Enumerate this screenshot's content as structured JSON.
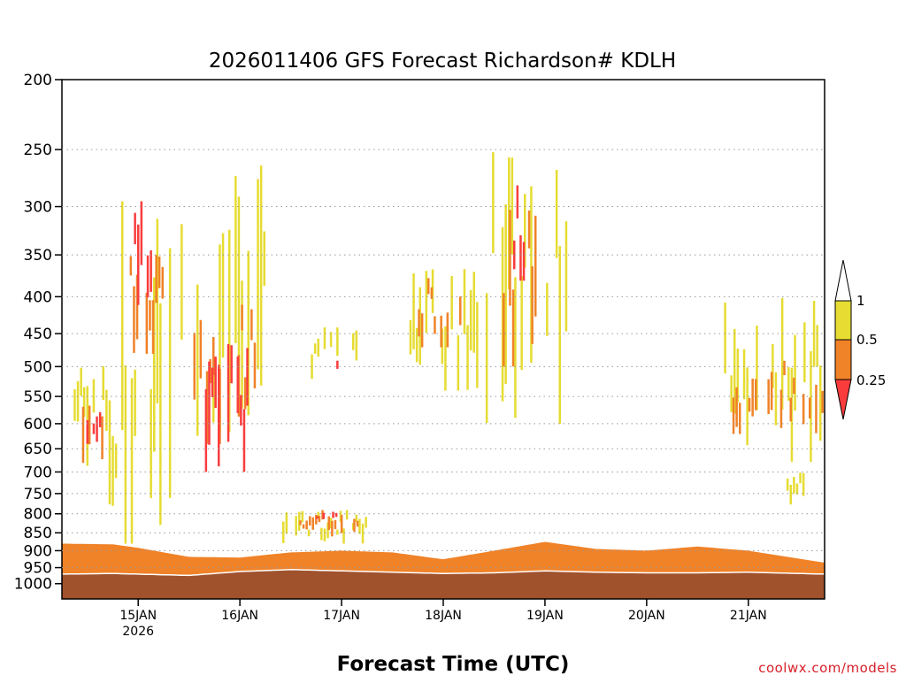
{
  "chart_data": {
    "type": "heatmap",
    "title": "2026011406 GFS Forecast Richardson# KDLH",
    "xlabel": "Forecast Time (UTC)",
    "ylabel": "",
    "y_axis": {
      "scale": "log-pressure",
      "reversed": false,
      "range": [
        200,
        1050
      ],
      "ticks": [
        200,
        250,
        300,
        350,
        400,
        450,
        500,
        550,
        600,
        650,
        700,
        750,
        800,
        850,
        900,
        950,
        1000
      ]
    },
    "x_axis": {
      "range_hours": [
        0,
        180
      ],
      "ticks": [
        {
          "hour": 18,
          "label": "15JAN",
          "sublabel": "2026"
        },
        {
          "hour": 42,
          "label": "16JAN",
          "sublabel": ""
        },
        {
          "hour": 66,
          "label": "17JAN",
          "sublabel": ""
        },
        {
          "hour": 90,
          "label": "18JAN",
          "sublabel": ""
        },
        {
          "hour": 114,
          "label": "19JAN",
          "sublabel": ""
        },
        {
          "hour": 138,
          "label": "20JAN",
          "sublabel": ""
        },
        {
          "hour": 162,
          "label": "21JAN",
          "sublabel": ""
        }
      ]
    },
    "grid": "horizontal dotted at pressure ticks",
    "legend": {
      "placement": "right",
      "type": "colorbar",
      "levels": [
        {
          "label": "1",
          "color": "#ffffff"
        },
        {
          "label": "0.5",
          "color": "#e6dc32"
        },
        {
          "label": "0.25",
          "color": "#f08228"
        },
        {
          "label": "",
          "color": "#fa3c3c"
        }
      ]
    },
    "colors": {
      "ri_lt_1": "#e6dc32",
      "ri_lt_05": "#f08228",
      "ri_lt_025": "#fa3c3c",
      "ground": "#a0522d",
      "surface_line": "#ffffff"
    },
    "surface_pressure": {
      "hours": [
        0,
        12,
        24,
        30,
        42,
        54,
        66,
        78,
        90,
        102,
        114,
        126,
        138,
        150,
        162,
        174,
        180
      ],
      "values": [
        970,
        968,
        972,
        974,
        962,
        956,
        960,
        964,
        968,
        966,
        960,
        964,
        966,
        966,
        964,
        968,
        970
      ]
    },
    "regions": [
      {
        "ri": 0.25,
        "h0": 0,
        "h1": 180,
        "kind": "low",
        "top": [
          888,
          888,
          895,
          910,
          925,
          930,
          920,
          905,
          912,
          935,
          910,
          890,
          905,
          908,
          895,
          910,
          945
        ],
        "top_hours": [
          0,
          12,
          18,
          24,
          30,
          42,
          54,
          66,
          78,
          90,
          102,
          114,
          126,
          138,
          150,
          162,
          180
        ]
      },
      {
        "ri": 0.5,
        "h0": 0,
        "h1": 180,
        "kind": "low",
        "top": [
          880,
          882,
          892,
          905,
          918,
          920,
          905,
          900,
          905,
          925,
          900,
          875,
          895,
          900,
          888,
          900,
          935
        ],
        "top_hours": [
          0,
          12,
          18,
          24,
          30,
          42,
          54,
          66,
          78,
          90,
          102,
          114,
          126,
          138,
          150,
          162,
          180
        ]
      },
      {
        "ri": 1.0,
        "h0": 52,
        "h1": 72,
        "p0": 790,
        "p1": 880
      },
      {
        "ri": 0.5,
        "h0": 56,
        "h1": 70,
        "p0": 790,
        "p1": 860
      },
      {
        "ri": 0.25,
        "h0": 60,
        "h1": 66,
        "p0": 795,
        "p1": 820
      },
      {
        "ri": 1.0,
        "h0": 2,
        "h1": 14,
        "p0": 480,
        "p1": 780
      },
      {
        "ri": 0.5,
        "h0": 4,
        "h1": 10,
        "p0": 520,
        "p1": 680
      },
      {
        "ri": 0.25,
        "h0": 5,
        "h1": 9,
        "p0": 560,
        "p1": 640
      },
      {
        "ri": 1.0,
        "h0": 14,
        "h1": 26,
        "p0": 280,
        "p1": 880
      },
      {
        "ri": 0.5,
        "h0": 16,
        "h1": 24,
        "p0": 340,
        "p1": 480
      },
      {
        "ri": 0.25,
        "h0": 17,
        "h1": 22,
        "p0": 290,
        "p1": 420
      },
      {
        "ri": 1.0,
        "h0": 28,
        "h1": 48,
        "p0": 260,
        "p1": 720
      },
      {
        "ri": 0.5,
        "h0": 31,
        "h1": 46,
        "p0": 400,
        "p1": 640
      },
      {
        "ri": 0.25,
        "h0": 33,
        "h1": 44,
        "p0": 440,
        "p1": 700
      },
      {
        "ri": 1.0,
        "h0": 58,
        "h1": 70,
        "p0": 440,
        "p1": 520
      },
      {
        "ri": 0.25,
        "h0": 64,
        "h1": 66,
        "p0": 490,
        "p1": 515
      },
      {
        "ri": 1.0,
        "h0": 82,
        "h1": 98,
        "p0": 360,
        "p1": 540
      },
      {
        "ri": 0.5,
        "h0": 84,
        "h1": 94,
        "p0": 370,
        "p1": 470
      },
      {
        "ri": 1.0,
        "h0": 100,
        "h1": 120,
        "p0": 240,
        "p1": 600
      },
      {
        "ri": 0.5,
        "h0": 104,
        "h1": 112,
        "p0": 280,
        "p1": 500
      },
      {
        "ri": 0.25,
        "h0": 105,
        "h1": 109,
        "p0": 280,
        "p1": 380
      },
      {
        "ri": 1.0,
        "h0": 154,
        "h1": 180,
        "p0": 400,
        "p1": 680
      },
      {
        "ri": 0.5,
        "h0": 156,
        "h1": 180,
        "p0": 490,
        "p1": 620
      },
      {
        "ri": 1.0,
        "h0": 171,
        "h1": 175,
        "p0": 700,
        "p1": 780
      }
    ]
  },
  "footer": {
    "credit": "coolwx.com/models"
  }
}
